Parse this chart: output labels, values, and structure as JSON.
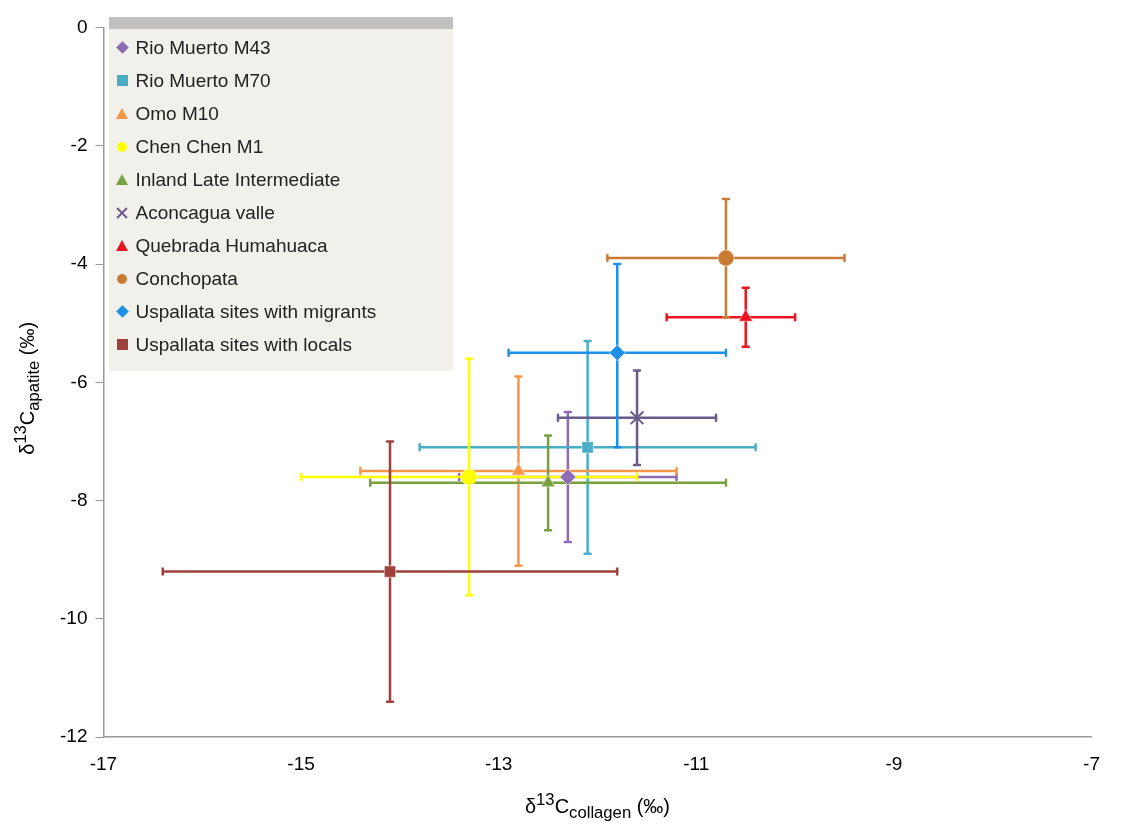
{
  "chart_data": {
    "type": "scatter",
    "xlabel": "δ$^{13}$C$_{collagen}$ (‰)",
    "ylabel": "δ$^{13}$C$_{apatite}$  (‰)",
    "xlim": [
      -17,
      -7
    ],
    "xticks": [
      -17,
      -15,
      -13,
      -11,
      -9,
      -7
    ],
    "ylim": [
      -12,
      0
    ],
    "yticks": [
      -12,
      -10,
      -8,
      -6,
      -4,
      -2,
      0
    ],
    "grid": false,
    "legend": "top left",
    "series": [
      {
        "name": "Rio Muerto M43",
        "color": "#8e6bb5",
        "marker": "diamond",
        "x": [
          -12.3
        ],
        "values": [
          -7.6
        ],
        "xerrors": [
          [
            -13.4,
            -11.2
          ]
        ],
        "errors": [
          [
            -8.7,
            -6.5
          ]
        ]
      },
      {
        "name": "Rio Muerto M70",
        "color": "#4bacc6",
        "marker": "square",
        "x": [
          -12.1
        ],
        "values": [
          -7.1
        ],
        "xerrors": [
          [
            -13.8,
            -10.4
          ]
        ],
        "errors": [
          [
            -8.9,
            -5.3
          ]
        ]
      },
      {
        "name": "Omo M10",
        "color": "#f79646",
        "marker": "triangle",
        "x": [
          -12.8
        ],
        "values": [
          -7.5
        ],
        "xerrors": [
          [
            -14.4,
            -11.2
          ]
        ],
        "errors": [
          [
            -9.1,
            -5.9
          ]
        ]
      },
      {
        "name": "Chen Chen M1",
        "color": "#ffff00",
        "marker": "circle",
        "x": [
          -13.3
        ],
        "values": [
          -7.6
        ],
        "xerrors": [
          [
            -15.0,
            -11.6
          ]
        ],
        "errors": [
          [
            -9.6,
            -5.6
          ]
        ]
      },
      {
        "name": "Inland Late Intermediate",
        "color": "#77a040",
        "marker": "triangle",
        "x": [
          -12.5
        ],
        "values": [
          -7.7
        ],
        "xerrors": [
          [
            -14.3,
            -10.7
          ]
        ],
        "errors": [
          [
            -8.5,
            -6.9
          ]
        ]
      },
      {
        "name": "Aconcagua valle",
        "color": "#6b5b8a",
        "marker": "cross",
        "x": [
          -11.6
        ],
        "values": [
          -6.6
        ],
        "xerrors": [
          [
            -12.4,
            -10.8
          ]
        ],
        "errors": [
          [
            -7.4,
            -5.8
          ]
        ]
      },
      {
        "name": "Quebrada Humahuaca",
        "color": "#e8141e",
        "marker": "triangle",
        "x": [
          -10.5
        ],
        "values": [
          -4.9
        ],
        "xerrors": [
          [
            -11.3,
            -10.0
          ]
        ],
        "errors": [
          [
            -5.4,
            -4.4
          ]
        ]
      },
      {
        "name": "Conchopata",
        "color": "#c97b35",
        "marker": "circle",
        "x": [
          -10.7
        ],
        "values": [
          -3.9
        ],
        "xerrors": [
          [
            -11.9,
            -9.5
          ]
        ],
        "errors": [
          [
            -4.9,
            -2.9
          ]
        ]
      },
      {
        "name": "Uspallata sites with migrants",
        "color": "#1e90e8",
        "marker": "diamond",
        "x": [
          -11.8
        ],
        "values": [
          -5.5
        ],
        "xerrors": [
          [
            -12.9,
            -10.7
          ]
        ],
        "errors": [
          [
            -7.1,
            -4.0
          ]
        ]
      },
      {
        "name": "Uspallata sites with locals",
        "color": "#a0403c",
        "marker": "square",
        "x": [
          -14.1
        ],
        "values": [
          -9.2
        ],
        "xerrors": [
          [
            -16.4,
            -11.8
          ]
        ],
        "errors": [
          [
            -11.4,
            -7.0
          ]
        ]
      }
    ]
  }
}
